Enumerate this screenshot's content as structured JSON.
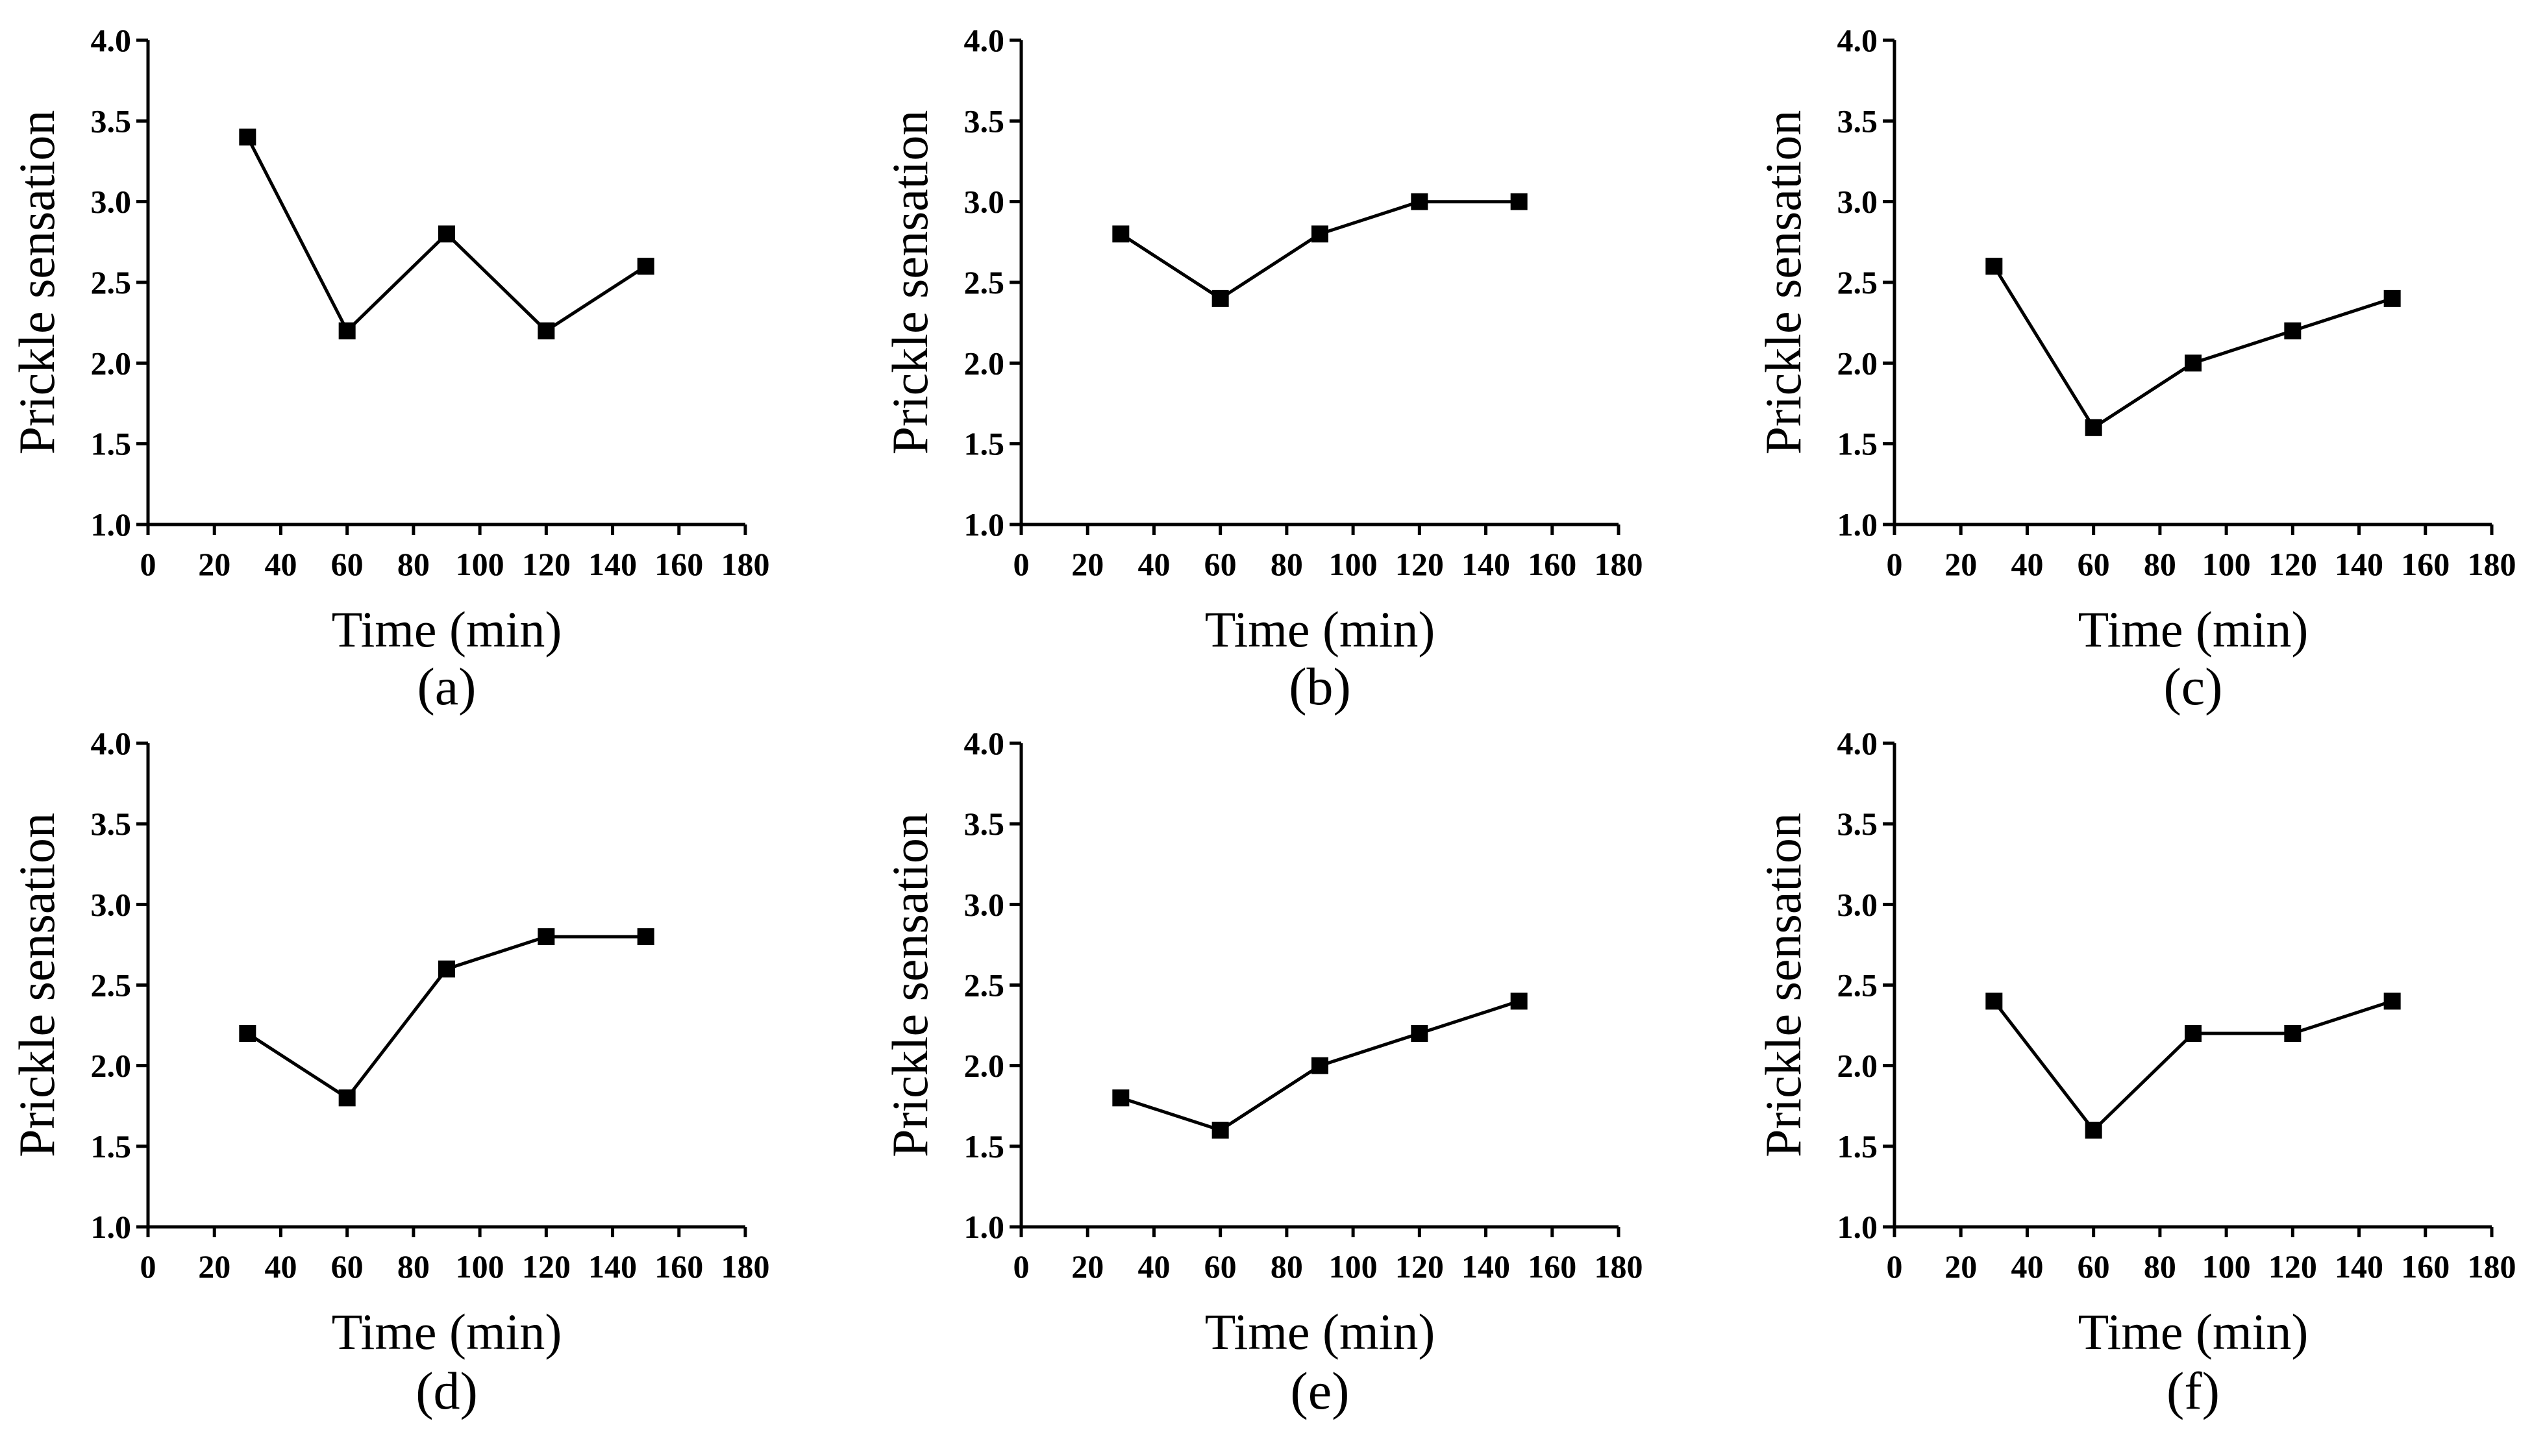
{
  "chart_data": [
    {
      "type": "line",
      "label": "(a)",
      "xlabel": "Time (min)",
      "ylabel": "Prickle sensation",
      "xlim": [
        0,
        180
      ],
      "ylim": [
        1.0,
        4.0
      ],
      "xticks": [
        0,
        20,
        40,
        60,
        80,
        100,
        120,
        140,
        160,
        180
      ],
      "yticks": [
        "1.0",
        "1.5",
        "2.0",
        "2.5",
        "3.0",
        "3.5",
        "4.0"
      ],
      "x": [
        30,
        60,
        90,
        120,
        150
      ],
      "y": [
        3.4,
        2.2,
        2.8,
        2.2,
        2.6
      ]
    },
    {
      "type": "line",
      "label": "(b)",
      "xlabel": "Time (min)",
      "ylabel": "Prickle sensation",
      "xlim": [
        0,
        180
      ],
      "ylim": [
        1.0,
        4.0
      ],
      "xticks": [
        0,
        20,
        40,
        60,
        80,
        100,
        120,
        140,
        160,
        180
      ],
      "yticks": [
        "1.0",
        "1.5",
        "2.0",
        "2.5",
        "3.0",
        "3.5",
        "4.0"
      ],
      "x": [
        30,
        60,
        90,
        120,
        150
      ],
      "y": [
        2.8,
        2.4,
        2.8,
        3.0,
        3.0
      ]
    },
    {
      "type": "line",
      "label": "(c)",
      "xlabel": "Time (min)",
      "ylabel": "Prickle sensation",
      "xlim": [
        0,
        180
      ],
      "ylim": [
        1.0,
        4.0
      ],
      "xticks": [
        0,
        20,
        40,
        60,
        80,
        100,
        120,
        140,
        160,
        180
      ],
      "yticks": [
        "1.0",
        "1.5",
        "2.0",
        "2.5",
        "3.0",
        "3.5",
        "4.0"
      ],
      "x": [
        30,
        60,
        90,
        120,
        150
      ],
      "y": [
        2.6,
        1.6,
        2.0,
        2.2,
        2.4
      ]
    },
    {
      "type": "line",
      "label": "(d)",
      "xlabel": "Time (min)",
      "ylabel": "Prickle sensation",
      "xlim": [
        0,
        180
      ],
      "ylim": [
        1.0,
        4.0
      ],
      "xticks": [
        0,
        20,
        40,
        60,
        80,
        100,
        120,
        140,
        160,
        180
      ],
      "yticks": [
        "1.0",
        "1.5",
        "2.0",
        "2.5",
        "3.0",
        "3.5",
        "4.0"
      ],
      "x": [
        30,
        60,
        90,
        120,
        150
      ],
      "y": [
        2.2,
        1.8,
        2.6,
        2.8,
        2.8
      ]
    },
    {
      "type": "line",
      "label": "(e)",
      "xlabel": "Time (min)",
      "ylabel": "Prickle sensation",
      "xlim": [
        0,
        180
      ],
      "ylim": [
        1.0,
        4.0
      ],
      "xticks": [
        0,
        20,
        40,
        60,
        80,
        100,
        120,
        140,
        160,
        180
      ],
      "yticks": [
        "1.0",
        "1.5",
        "2.0",
        "2.5",
        "3.0",
        "3.5",
        "4.0"
      ],
      "x": [
        30,
        60,
        90,
        120,
        150
      ],
      "y": [
        1.8,
        1.6,
        2.0,
        2.2,
        2.4
      ]
    },
    {
      "type": "line",
      "label": "(f)",
      "xlabel": "Time (min)",
      "ylabel": "Prickle sensation",
      "xlim": [
        0,
        180
      ],
      "ylim": [
        1.0,
        4.0
      ],
      "xticks": [
        0,
        20,
        40,
        60,
        80,
        100,
        120,
        140,
        160,
        180
      ],
      "yticks": [
        "1.0",
        "1.5",
        "2.0",
        "2.5",
        "3.0",
        "3.5",
        "4.0"
      ],
      "x": [
        30,
        60,
        90,
        120,
        150
      ],
      "y": [
        2.4,
        1.6,
        2.2,
        2.2,
        2.4
      ]
    }
  ],
  "colors": {
    "line": "#000000",
    "marker": "#000000",
    "background": "#ffffff"
  }
}
